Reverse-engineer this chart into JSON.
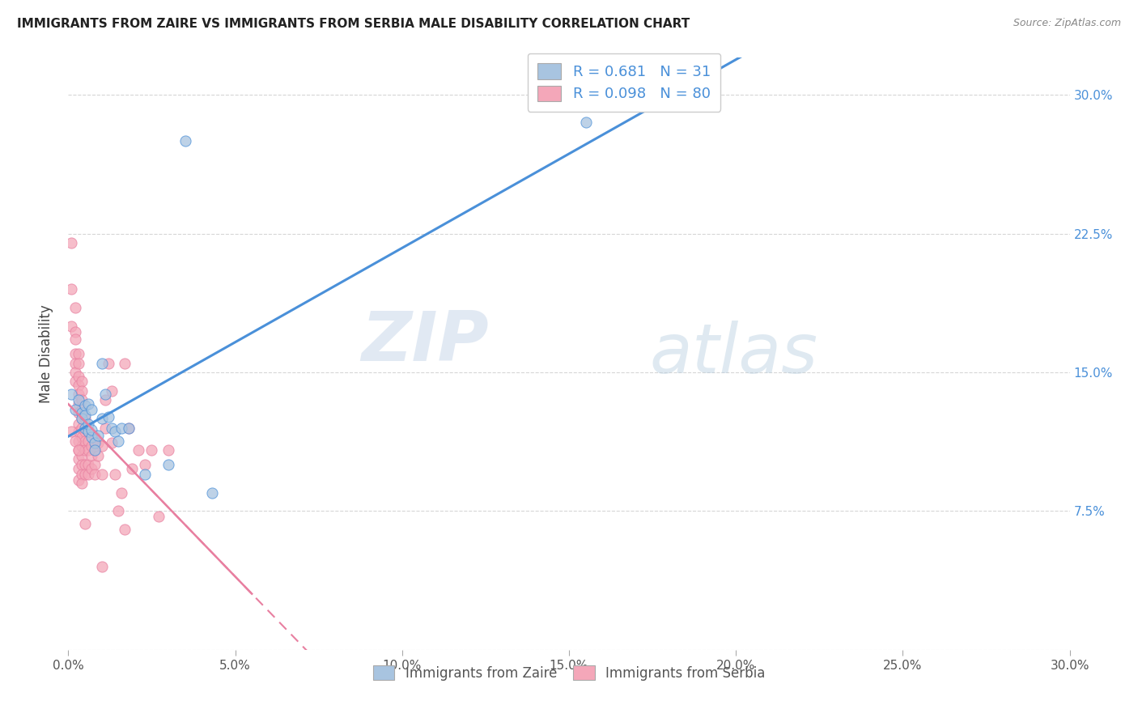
{
  "title": "IMMIGRANTS FROM ZAIRE VS IMMIGRANTS FROM SERBIA MALE DISABILITY CORRELATION CHART",
  "source": "Source: ZipAtlas.com",
  "ylabel": "Male Disability",
  "xlim": [
    0.0,
    0.3
  ],
  "ylim": [
    0.0,
    0.32
  ],
  "legend_label1": "Immigrants from Zaire",
  "legend_label2": "Immigrants from Serbia",
  "R1": "0.681",
  "N1": "31",
  "R2": "0.098",
  "N2": "80",
  "color_zaire": "#a8c4e0",
  "color_serbia": "#f4a7b9",
  "line_color_zaire": "#4a90d9",
  "line_color_serbia": "#e87fa0",
  "watermark_zip": "ZIP",
  "watermark_atlas": "atlas",
  "x_ticks": [
    0.0,
    0.05,
    0.1,
    0.15,
    0.2,
    0.25,
    0.3
  ],
  "x_tick_labels": [
    "0.0%",
    "5.0%",
    "10.0%",
    "15.0%",
    "20.0%",
    "25.0%",
    "30.0%"
  ],
  "y_ticks": [
    0.0,
    0.075,
    0.15,
    0.225,
    0.3
  ],
  "y_tick_labels_right": [
    "",
    "7.5%",
    "15.0%",
    "22.5%",
    "30.0%"
  ],
  "zaire_points": [
    [
      0.001,
      0.138
    ],
    [
      0.002,
      0.13
    ],
    [
      0.003,
      0.135
    ],
    [
      0.004,
      0.128
    ],
    [
      0.004,
      0.125
    ],
    [
      0.005,
      0.132
    ],
    [
      0.005,
      0.12
    ],
    [
      0.005,
      0.127
    ],
    [
      0.006,
      0.133
    ],
    [
      0.006,
      0.118
    ],
    [
      0.006,
      0.122
    ],
    [
      0.007,
      0.115
    ],
    [
      0.007,
      0.119
    ],
    [
      0.007,
      0.13
    ],
    [
      0.008,
      0.112
    ],
    [
      0.008,
      0.108
    ],
    [
      0.009,
      0.116
    ],
    [
      0.01,
      0.155
    ],
    [
      0.01,
      0.125
    ],
    [
      0.011,
      0.138
    ],
    [
      0.012,
      0.126
    ],
    [
      0.013,
      0.12
    ],
    [
      0.014,
      0.118
    ],
    [
      0.015,
      0.113
    ],
    [
      0.016,
      0.12
    ],
    [
      0.018,
      0.12
    ],
    [
      0.023,
      0.095
    ],
    [
      0.03,
      0.1
    ],
    [
      0.035,
      0.275
    ],
    [
      0.043,
      0.085
    ],
    [
      0.155,
      0.285
    ]
  ],
  "serbia_points": [
    [
      0.001,
      0.22
    ],
    [
      0.001,
      0.195
    ],
    [
      0.001,
      0.175
    ],
    [
      0.002,
      0.185
    ],
    [
      0.002,
      0.172
    ],
    [
      0.002,
      0.168
    ],
    [
      0.002,
      0.16
    ],
    [
      0.002,
      0.155
    ],
    [
      0.002,
      0.15
    ],
    [
      0.002,
      0.145
    ],
    [
      0.003,
      0.16
    ],
    [
      0.003,
      0.155
    ],
    [
      0.003,
      0.148
    ],
    [
      0.003,
      0.143
    ],
    [
      0.003,
      0.138
    ],
    [
      0.003,
      0.133
    ],
    [
      0.003,
      0.128
    ],
    [
      0.003,
      0.122
    ],
    [
      0.003,
      0.118
    ],
    [
      0.003,
      0.113
    ],
    [
      0.003,
      0.108
    ],
    [
      0.003,
      0.103
    ],
    [
      0.003,
      0.098
    ],
    [
      0.003,
      0.092
    ],
    [
      0.004,
      0.145
    ],
    [
      0.004,
      0.14
    ],
    [
      0.004,
      0.135
    ],
    [
      0.004,
      0.13
    ],
    [
      0.004,
      0.125
    ],
    [
      0.004,
      0.12
    ],
    [
      0.004,
      0.115
    ],
    [
      0.004,
      0.11
    ],
    [
      0.004,
      0.105
    ],
    [
      0.004,
      0.1
    ],
    [
      0.004,
      0.095
    ],
    [
      0.004,
      0.09
    ],
    [
      0.005,
      0.125
    ],
    [
      0.005,
      0.118
    ],
    [
      0.005,
      0.113
    ],
    [
      0.005,
      0.108
    ],
    [
      0.005,
      0.1
    ],
    [
      0.005,
      0.095
    ],
    [
      0.005,
      0.068
    ],
    [
      0.006,
      0.118
    ],
    [
      0.006,
      0.113
    ],
    [
      0.006,
      0.108
    ],
    [
      0.006,
      0.1
    ],
    [
      0.006,
      0.095
    ],
    [
      0.007,
      0.11
    ],
    [
      0.007,
      0.105
    ],
    [
      0.007,
      0.098
    ],
    [
      0.008,
      0.115
    ],
    [
      0.008,
      0.108
    ],
    [
      0.008,
      0.1
    ],
    [
      0.008,
      0.095
    ],
    [
      0.009,
      0.112
    ],
    [
      0.009,
      0.105
    ],
    [
      0.01,
      0.11
    ],
    [
      0.01,
      0.095
    ],
    [
      0.011,
      0.135
    ],
    [
      0.011,
      0.12
    ],
    [
      0.012,
      0.155
    ],
    [
      0.013,
      0.14
    ],
    [
      0.013,
      0.112
    ],
    [
      0.014,
      0.095
    ],
    [
      0.015,
      0.075
    ],
    [
      0.016,
      0.085
    ],
    [
      0.017,
      0.155
    ],
    [
      0.017,
      0.065
    ],
    [
      0.018,
      0.12
    ],
    [
      0.019,
      0.098
    ],
    [
      0.021,
      0.108
    ],
    [
      0.023,
      0.1
    ],
    [
      0.025,
      0.108
    ],
    [
      0.027,
      0.072
    ],
    [
      0.03,
      0.108
    ],
    [
      0.001,
      0.118
    ],
    [
      0.002,
      0.113
    ],
    [
      0.003,
      0.108
    ],
    [
      0.01,
      0.045
    ]
  ]
}
